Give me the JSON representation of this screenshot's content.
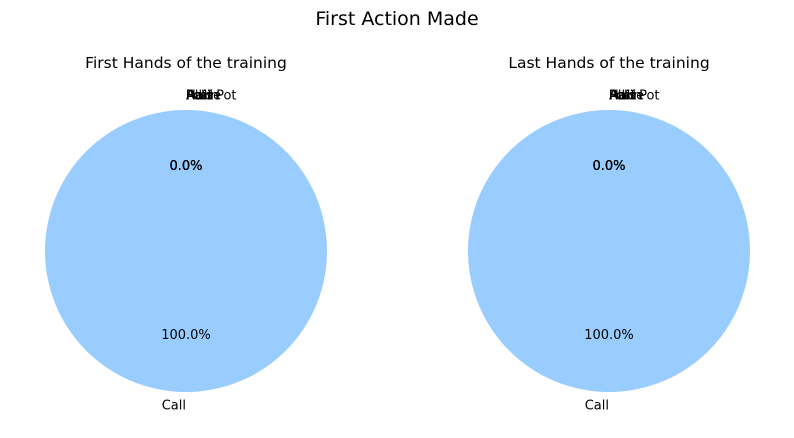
{
  "figure": {
    "suptitle": "First Action Made"
  },
  "chart_data": [
    {
      "type": "pie",
      "title": "First Hands of the training",
      "slices": [
        {
          "label": "Call",
          "value": 100.0,
          "pct_label": "100.0%",
          "color": "#99ccff"
        },
        {
          "label": "Fold",
          "value": 0.0,
          "pct_label": "0.0%",
          "color": "#ff9999"
        },
        {
          "label": "Raise",
          "value": 0.0,
          "pct_label": "0.0%",
          "color": "#66b3ff"
        },
        {
          "label": "All-in",
          "value": 0.0,
          "pct_label": "0.0%",
          "color": "#99ff99"
        },
        {
          "label": "Half Pot",
          "value": 0.0,
          "pct_label": "0.0%",
          "color": "#ffcc99"
        },
        {
          "label": "Pot",
          "value": 0.0,
          "pct_label": "0.0%",
          "color": "#c2c2f0"
        }
      ]
    },
    {
      "type": "pie",
      "title": "Last Hands of the training",
      "slices": [
        {
          "label": "Call",
          "value": 100.0,
          "pct_label": "100.0%",
          "color": "#99ccff"
        },
        {
          "label": "Fold",
          "value": 0.0,
          "pct_label": "0.0%",
          "color": "#ff9999"
        },
        {
          "label": "Raise",
          "value": 0.0,
          "pct_label": "0.0%",
          "color": "#66b3ff"
        },
        {
          "label": "All-in",
          "value": 0.0,
          "pct_label": "0.0%",
          "color": "#99ff99"
        },
        {
          "label": "Half Pot",
          "value": 0.0,
          "pct_label": "0.0%",
          "color": "#ffcc99"
        },
        {
          "label": "Pot",
          "value": 0.0,
          "pct_label": "0.0%",
          "color": "#c2c2f0"
        }
      ]
    }
  ]
}
